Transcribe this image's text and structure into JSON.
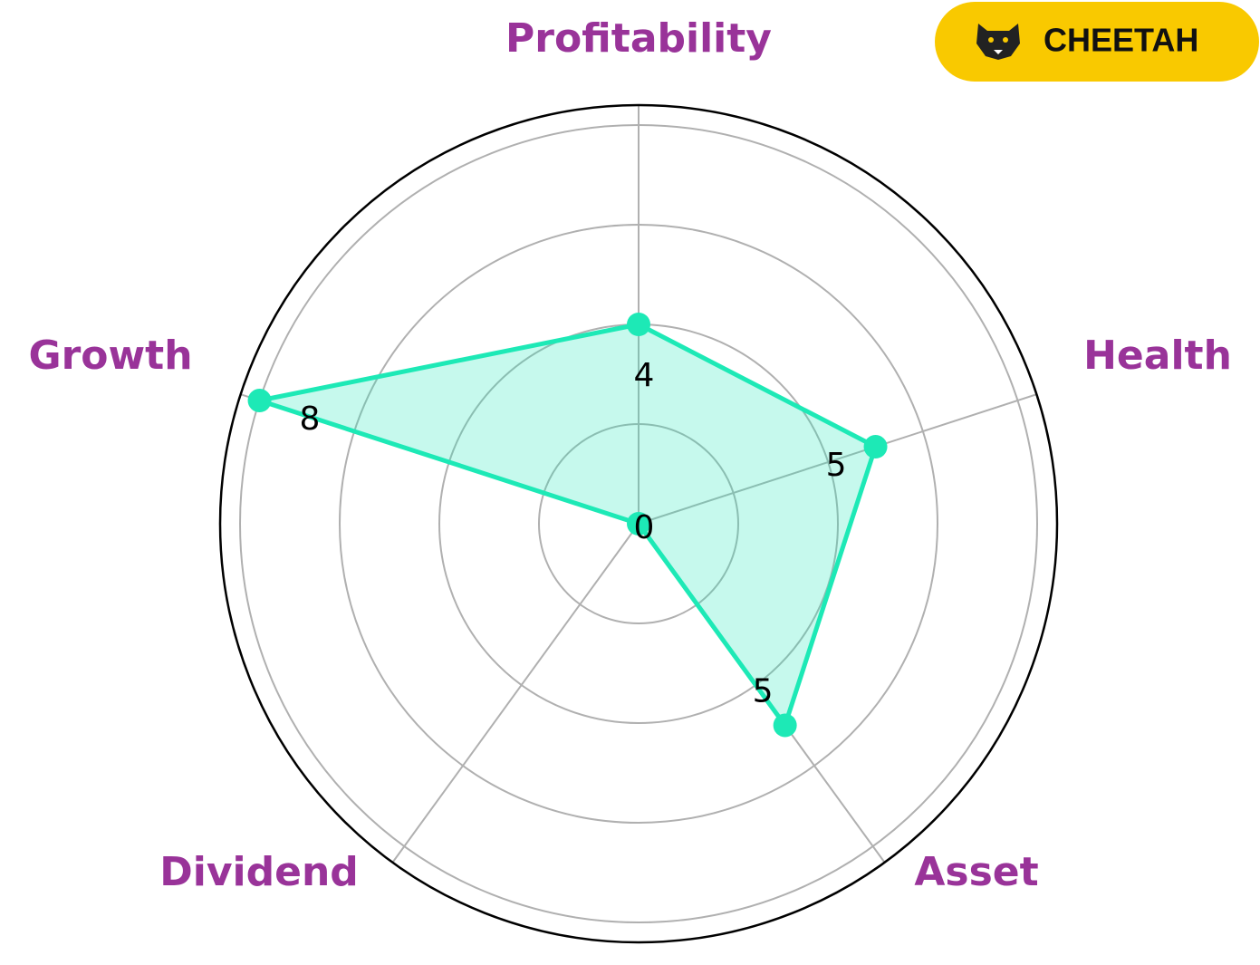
{
  "chart_data": {
    "type": "radar",
    "categories": [
      "Profitability",
      "Health",
      "Asset",
      "Dividend",
      "Growth"
    ],
    "values": [
      4,
      5,
      5,
      0,
      8
    ],
    "color": "#1de9b6",
    "ylim": [
      0,
      8.4
    ],
    "yticks": [
      2,
      4,
      6,
      8
    ],
    "grid": true
  },
  "badge": "CHEETAH"
}
